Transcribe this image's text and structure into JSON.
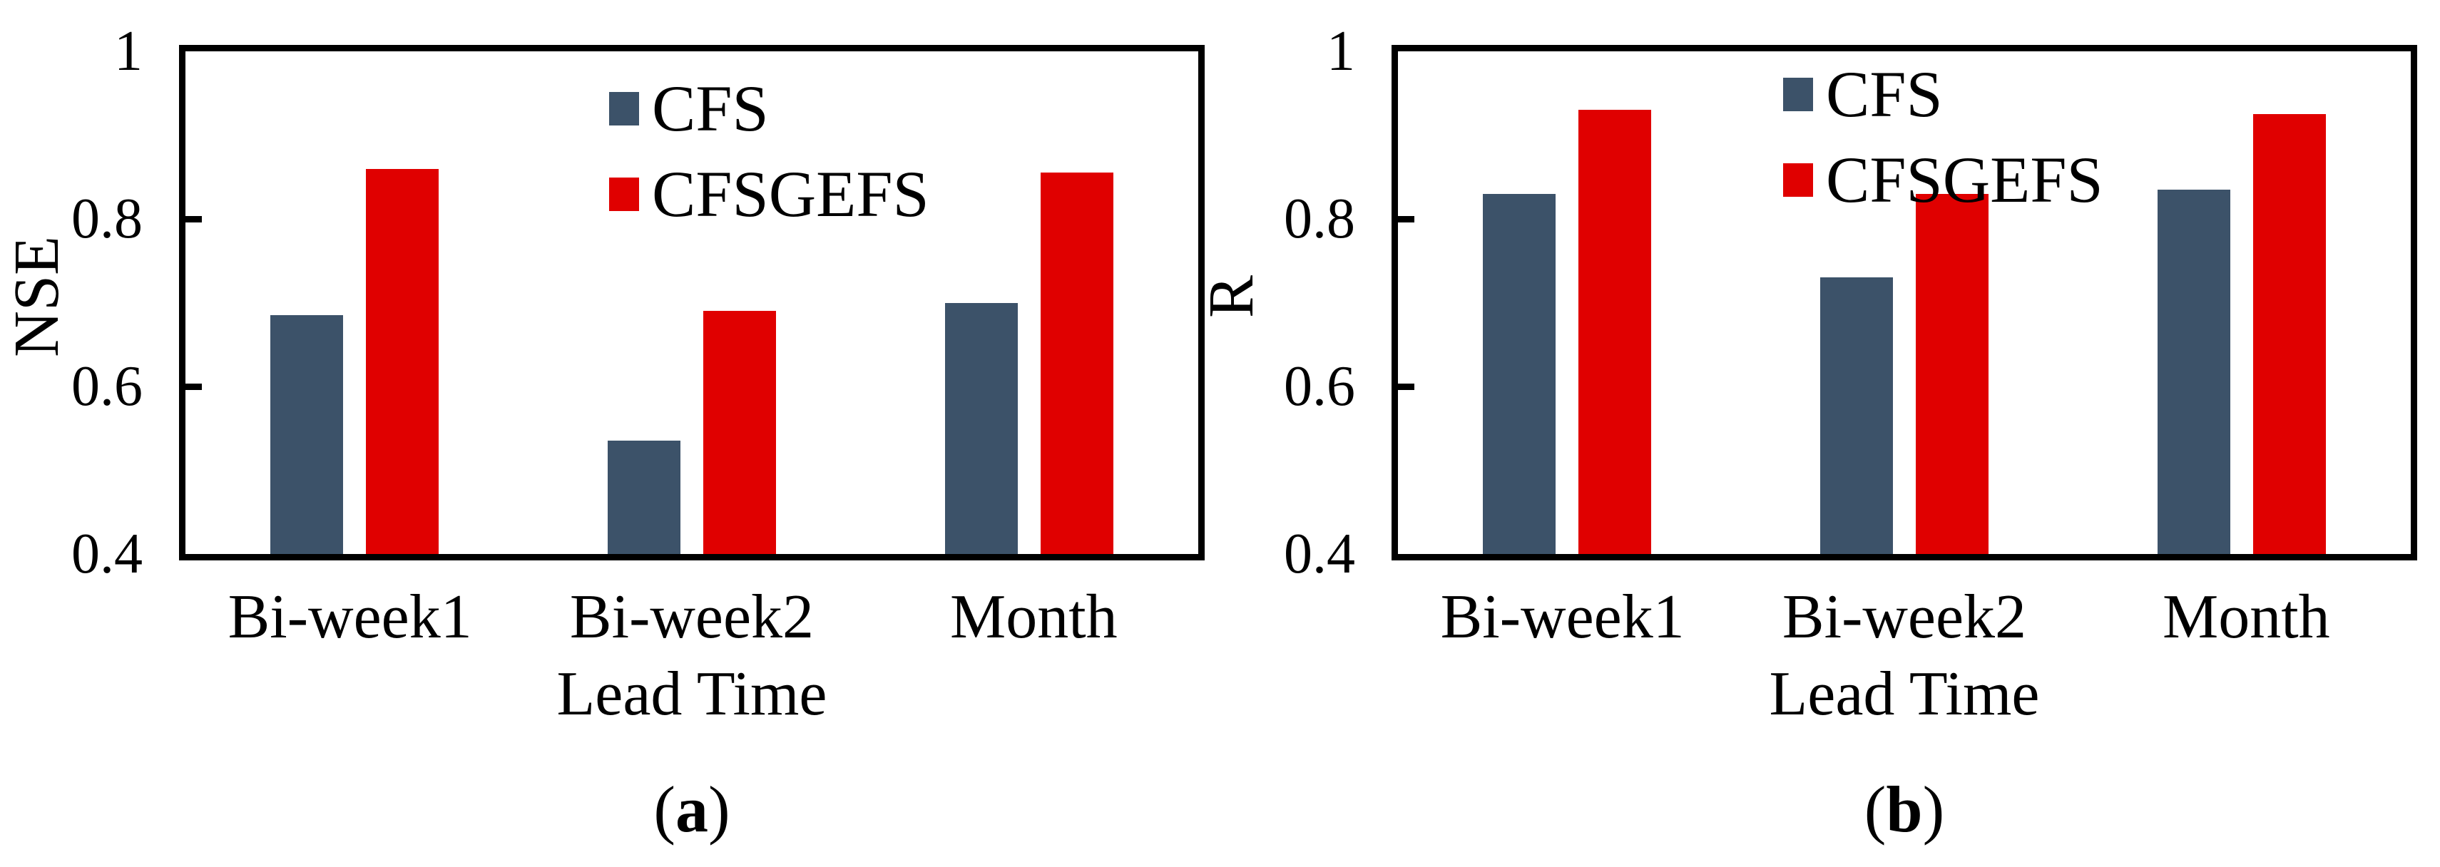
{
  "figure": {
    "background_color": "#FFFFFF",
    "axis_color": "#000000",
    "bar_colors": {
      "CFS": "#3C5269",
      "CFSGEFS": "#E00000"
    }
  },
  "chart_data": [
    {
      "id": "a",
      "type": "bar",
      "caption_open": "(",
      "caption_letter": "a",
      "caption_close": ")",
      "xlabel": "Lead Time",
      "ylabel": "NSE",
      "categories": [
        "Bi-week1",
        "Bi-week2",
        "Month"
      ],
      "series": [
        {
          "name": "CFS",
          "color": "#3C5269",
          "values": [
            0.685,
            0.535,
            0.7
          ]
        },
        {
          "name": "CFSGEFS",
          "color": "#E00000",
          "values": [
            0.86,
            0.69,
            0.855
          ]
        }
      ],
      "ylim": [
        0.4,
        1.0
      ],
      "yticks": [
        1.0,
        0.8,
        0.6,
        0.4
      ],
      "ytick_labels": [
        "1",
        "0.8",
        "0.6",
        "0.4"
      ],
      "legend": [
        "CFS",
        "CFSGEFS"
      ],
      "legend_position": "inside-top-center",
      "grid": false
    },
    {
      "id": "b",
      "type": "bar",
      "caption_open": "(",
      "caption_letter": "b",
      "caption_close": ")",
      "xlabel": "Lead Time",
      "ylabel": "R",
      "categories": [
        "Bi-week1",
        "Bi-week2",
        "Month"
      ],
      "series": [
        {
          "name": "CFS",
          "color": "#3C5269",
          "values": [
            0.83,
            0.73,
            0.835
          ]
        },
        {
          "name": "CFSGEFS",
          "color": "#E00000",
          "values": [
            0.93,
            0.83,
            0.925
          ]
        }
      ],
      "ylim": [
        0.4,
        1.0
      ],
      "yticks": [
        1.0,
        0.8,
        0.6,
        0.4
      ],
      "ytick_labels": [
        "1",
        "0.8",
        "0.6",
        "0.4"
      ],
      "legend": [
        "CFS",
        "CFSGEFS"
      ],
      "legend_position": "inside-top-center",
      "grid": false
    }
  ]
}
